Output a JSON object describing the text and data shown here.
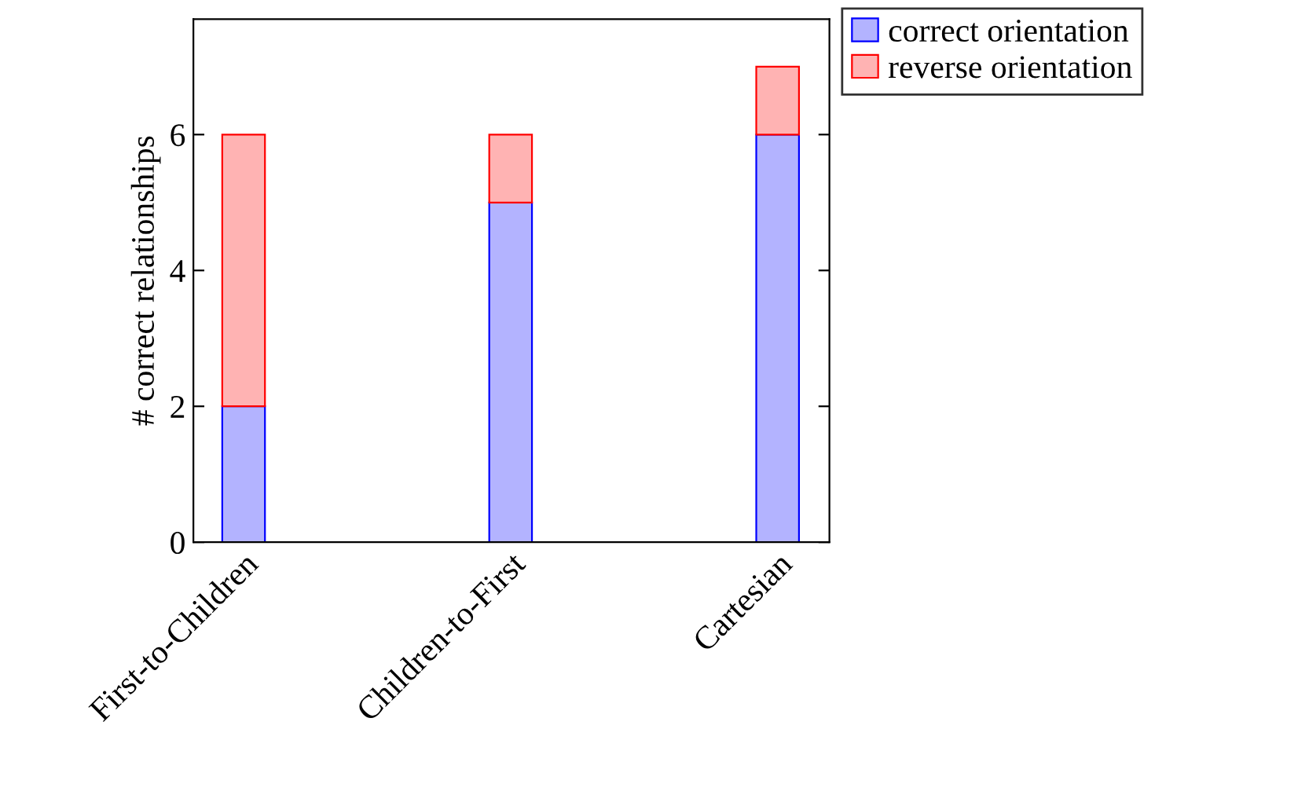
{
  "chart_data": {
    "type": "bar",
    "stacked": true,
    "ylabel": "# correct relationships",
    "categories": [
      "First-to-Children",
      "Children-to-First",
      "Cartesian"
    ],
    "series": [
      {
        "name": "correct orientation",
        "color": "#b3b3ff",
        "values": [
          2,
          5,
          6
        ]
      },
      {
        "name": "reverse orientation",
        "color": "#ffb3b3",
        "values": [
          4,
          1,
          1
        ]
      }
    ],
    "ylim": [
      0,
      7.7
    ],
    "yticks": [
      0,
      2,
      4,
      6
    ],
    "grid": false,
    "legend": "top right"
  }
}
